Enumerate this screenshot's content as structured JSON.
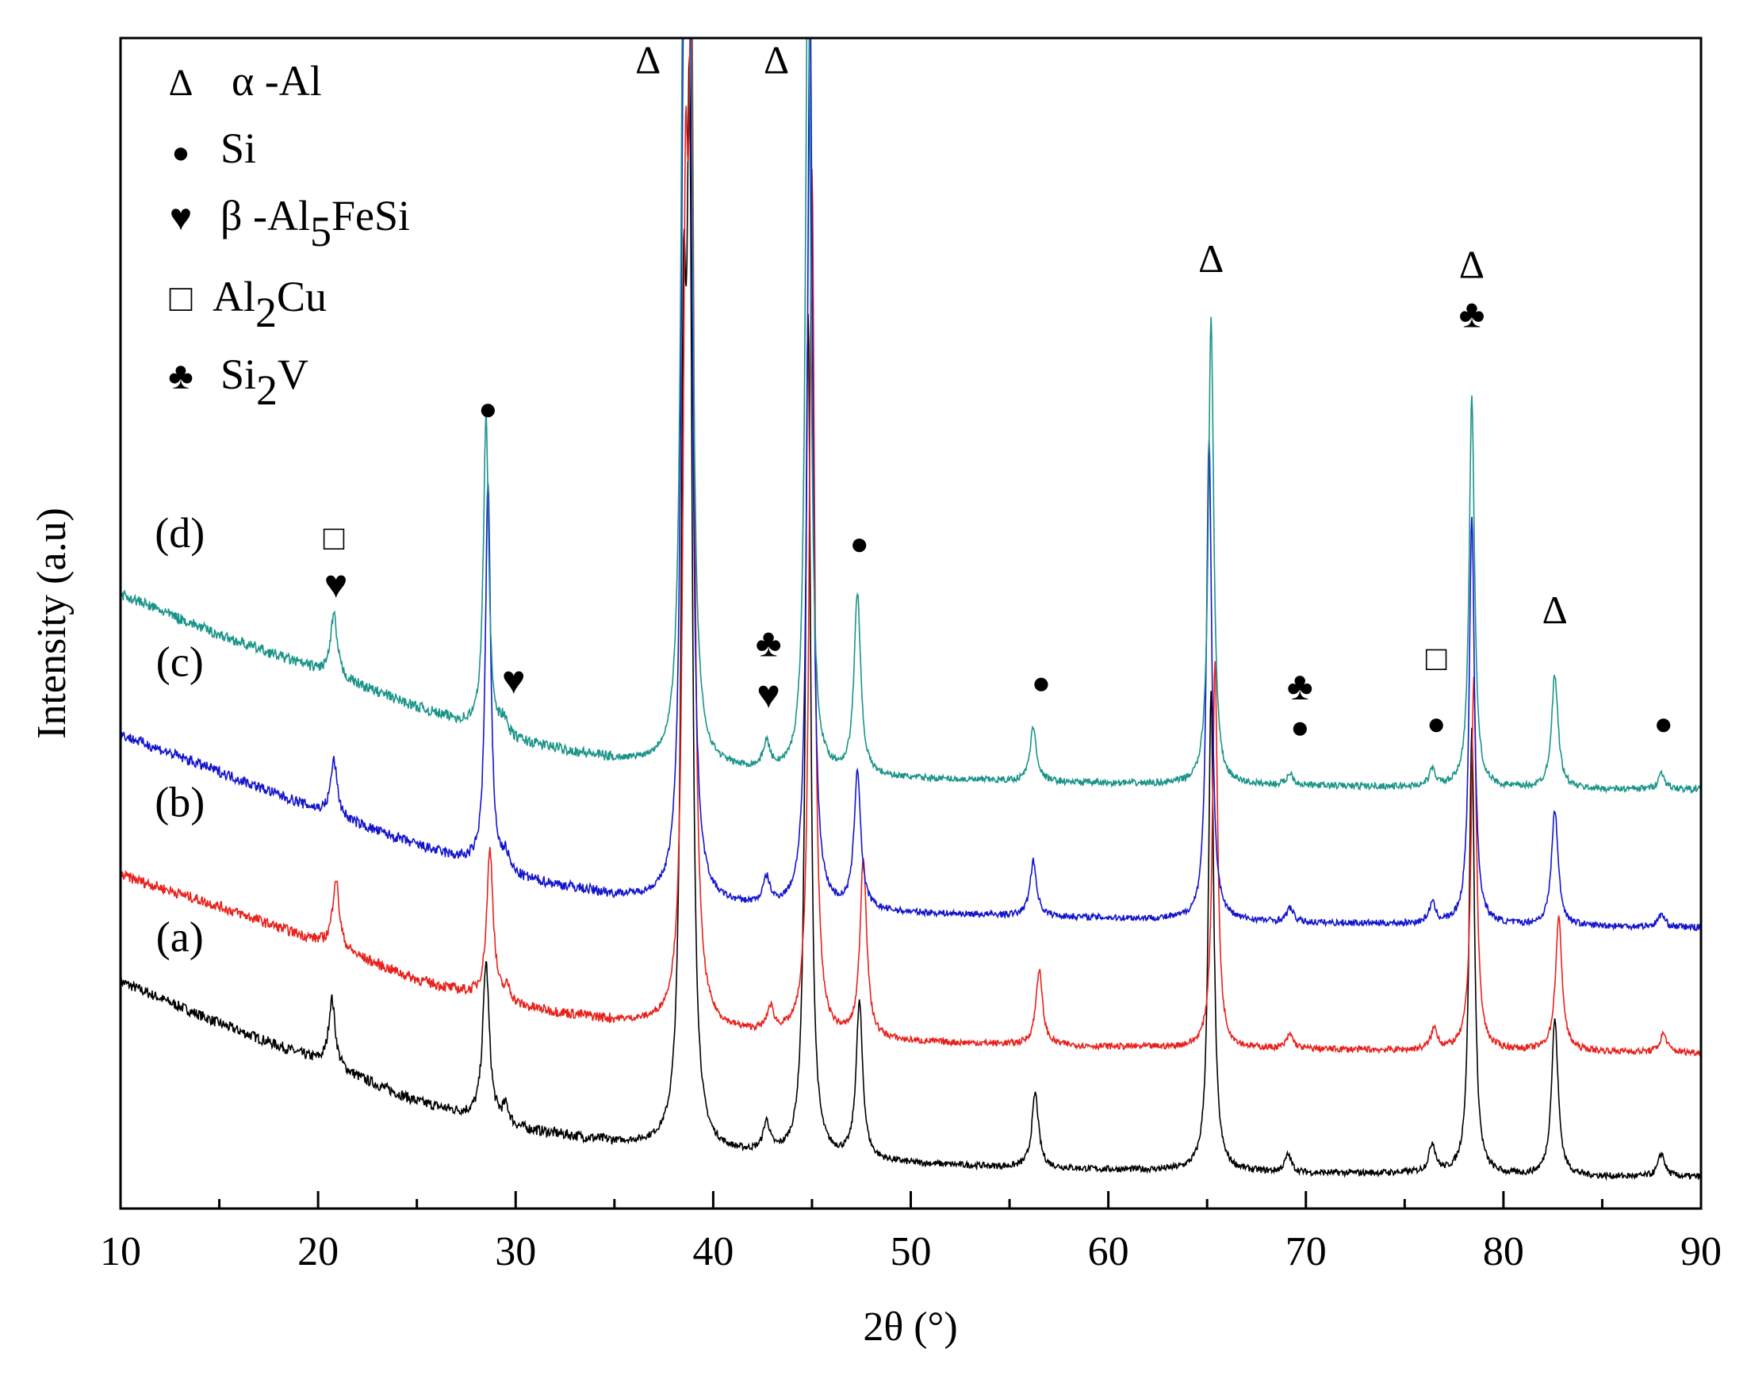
{
  "chart_data": {
    "type": "line",
    "title": "",
    "xlabel": "2θ (°)",
    "ylabel": "Intensity (a.u)",
    "xlim": [
      10,
      90
    ],
    "ylim": [
      0,
      100
    ],
    "xticks": [
      10,
      20,
      30,
      40,
      50,
      60,
      70,
      80,
      90
    ],
    "minor_tick_step": 5,
    "grid": false,
    "legend_position": "top-left",
    "legend": [
      {
        "symbol": "Δ",
        "label": "α -Al"
      },
      {
        "symbol": "●",
        "label": "Si"
      },
      {
        "symbol": "♥",
        "label": "β -Al",
        "subscript": "5",
        "suffix": "FeSi"
      },
      {
        "symbol": "□",
        "label": "Al",
        "subscript": "2",
        "suffix": "Cu"
      },
      {
        "symbol": "♣",
        "label": "Si",
        "subscript": "2",
        "suffix": "V"
      }
    ],
    "series": [
      {
        "name": "(a)",
        "color": "#000000",
        "baseline": [
          [
            10,
            19.4
          ],
          [
            15,
            15.8
          ],
          [
            20,
            12.6
          ],
          [
            25,
            9.1
          ],
          [
            30,
            6.8
          ],
          [
            35,
            5.6
          ],
          [
            40,
            4.7
          ],
          [
            45,
            4.3
          ],
          [
            50,
            3.8
          ],
          [
            55,
            3.5
          ],
          [
            60,
            3.3
          ],
          [
            65,
            3.2
          ],
          [
            70,
            3.0
          ],
          [
            75,
            3.0
          ],
          [
            80,
            2.8
          ],
          [
            85,
            2.7
          ],
          [
            90,
            2.7
          ]
        ],
        "peaks": [
          [
            20.7,
            5.8
          ],
          [
            28.5,
            13.5
          ],
          [
            29.5,
            1.5
          ],
          [
            38.5,
            60
          ],
          [
            38.8,
            80
          ],
          [
            42.7,
            2.5
          ],
          [
            44.8,
            72
          ],
          [
            47.4,
            13.3
          ],
          [
            56.3,
            6.4
          ],
          [
            65.2,
            40.8
          ],
          [
            69.1,
            1.5
          ],
          [
            76.4,
            2.5
          ],
          [
            78.4,
            38.0
          ],
          [
            82.6,
            13.4
          ],
          [
            88.0,
            2.0
          ]
        ],
        "label_pos": [
          13,
          22
        ]
      },
      {
        "name": "(b)",
        "color": "#e8211c",
        "baseline": [
          [
            10,
            28.5
          ],
          [
            15,
            25.8
          ],
          [
            20,
            22.8
          ],
          [
            25,
            19.5
          ],
          [
            30,
            17.2
          ],
          [
            35,
            16.0
          ],
          [
            40,
            15.1
          ],
          [
            45,
            14.6
          ],
          [
            50,
            14.2
          ],
          [
            55,
            14.0
          ],
          [
            60,
            13.8
          ],
          [
            65,
            13.7
          ],
          [
            70,
            13.6
          ],
          [
            75,
            13.5
          ],
          [
            80,
            13.5
          ],
          [
            85,
            13.4
          ],
          [
            90,
            13.3
          ]
        ],
        "peaks": [
          [
            20.9,
            6.0
          ],
          [
            28.7,
            12.8
          ],
          [
            29.6,
            1.2
          ],
          [
            38.6,
            60
          ],
          [
            38.9,
            80
          ],
          [
            42.9,
            2.0
          ],
          [
            45.0,
            74
          ],
          [
            47.6,
            15.4
          ],
          [
            56.5,
            6.4
          ],
          [
            65.4,
            32.9
          ],
          [
            69.2,
            1.2
          ],
          [
            76.5,
            1.8
          ],
          [
            78.5,
            31.8
          ],
          [
            82.8,
            11.3
          ],
          [
            88.1,
            1.6
          ]
        ],
        "label_pos": [
          13,
          33.5
        ]
      },
      {
        "name": "(c)",
        "color": "#1414cc",
        "baseline": [
          [
            10,
            40.5
          ],
          [
            15,
            37.3
          ],
          [
            20,
            34.0
          ],
          [
            25,
            31.0
          ],
          [
            30,
            28.2
          ],
          [
            35,
            26.7
          ],
          [
            40,
            25.8
          ],
          [
            45,
            25.5
          ],
          [
            50,
            25.2
          ],
          [
            55,
            25.0
          ],
          [
            60,
            24.8
          ],
          [
            65,
            24.6
          ],
          [
            70,
            24.4
          ],
          [
            75,
            24.3
          ],
          [
            80,
            24.2
          ],
          [
            85,
            24.1
          ],
          [
            90,
            24.0
          ]
        ],
        "peaks": [
          [
            20.8,
            4.8
          ],
          [
            28.6,
            33.0
          ],
          [
            29.5,
            1.4
          ],
          [
            38.5,
            60
          ],
          [
            38.8,
            80
          ],
          [
            42.7,
            2.2
          ],
          [
            44.9,
            78
          ],
          [
            47.3,
            11.8
          ],
          [
            56.2,
            4.7
          ],
          [
            65.1,
            41.0
          ],
          [
            69.2,
            1.2
          ],
          [
            76.4,
            1.7
          ],
          [
            78.4,
            35.0
          ],
          [
            82.6,
            9.9
          ],
          [
            88.0,
            1.1
          ]
        ],
        "label_pos": [
          13,
          45.5
        ]
      },
      {
        "name": "(d)",
        "color": "#1a9488",
        "baseline": [
          [
            10,
            52.5
          ],
          [
            15,
            49.0
          ],
          [
            20,
            46.0
          ],
          [
            25,
            42.8
          ],
          [
            30,
            39.9
          ],
          [
            35,
            38.3
          ],
          [
            40,
            37.5
          ],
          [
            45,
            37.0
          ],
          [
            50,
            36.7
          ],
          [
            55,
            36.5
          ],
          [
            60,
            36.3
          ],
          [
            65,
            36.2
          ],
          [
            70,
            36.1
          ],
          [
            75,
            36.0
          ],
          [
            80,
            35.9
          ],
          [
            85,
            35.8
          ],
          [
            90,
            35.8
          ]
        ],
        "peaks": [
          [
            20.8,
            5.2
          ],
          [
            28.5,
            27.0
          ],
          [
            29.4,
            1.2
          ],
          [
            38.5,
            60
          ],
          [
            38.8,
            80
          ],
          [
            42.7,
            2.2
          ],
          [
            44.8,
            74
          ],
          [
            47.3,
            15.5
          ],
          [
            56.2,
            4.6
          ],
          [
            65.2,
            40.0
          ],
          [
            69.2,
            1.0
          ],
          [
            76.4,
            1.4
          ],
          [
            78.4,
            33.5
          ],
          [
            82.6,
            9.7
          ],
          [
            88.0,
            1.4
          ]
        ],
        "label_pos": [
          13,
          56.5
        ]
      }
    ],
    "annotations": [
      {
        "symbol": "Δ",
        "x": 36.7,
        "y": 97.0
      },
      {
        "symbol": "Δ",
        "x": 43.2,
        "y": 97.0
      },
      {
        "symbol": "Δ",
        "x": 65.2,
        "y": 80.0
      },
      {
        "symbol": "Δ",
        "x": 78.4,
        "y": 79.5
      },
      {
        "symbol": "Δ",
        "x": 82.6,
        "y": 50.0
      },
      {
        "symbol": "●",
        "x": 28.6,
        "y": 67.4
      },
      {
        "symbol": "●",
        "x": 47.4,
        "y": 55.9
      },
      {
        "symbol": "●",
        "x": 56.6,
        "y": 44.0
      },
      {
        "symbol": "●",
        "x": 69.7,
        "y": 40.2
      },
      {
        "symbol": "●",
        "x": 76.6,
        "y": 40.5
      },
      {
        "symbol": "●",
        "x": 88.1,
        "y": 40.5
      },
      {
        "symbol": "♥",
        "x": 20.9,
        "y": 52.2
      },
      {
        "symbol": "♥",
        "x": 29.9,
        "y": 44.0
      },
      {
        "symbol": "♥",
        "x": 42.8,
        "y": 42.8
      },
      {
        "symbol": "□",
        "x": 20.8,
        "y": 56.3
      },
      {
        "symbol": "□",
        "x": 76.6,
        "y": 46.0
      },
      {
        "symbol": "♣",
        "x": 42.8,
        "y": 47.2
      },
      {
        "symbol": "♣",
        "x": 69.7,
        "y": 43.5
      },
      {
        "symbol": "♣",
        "x": 78.4,
        "y": 75.3
      }
    ]
  }
}
